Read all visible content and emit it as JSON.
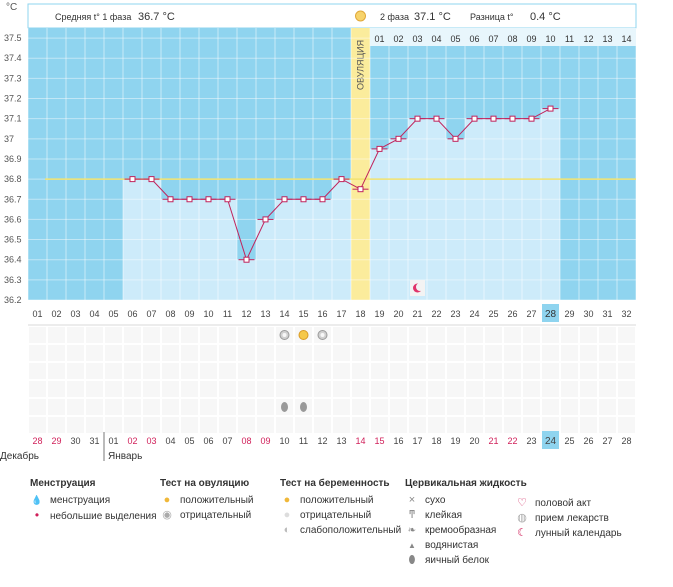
{
  "chart_data": {
    "type": "line",
    "ylabel": "°C",
    "y_ticks": [
      "37.5",
      "37.4",
      "37.3",
      "37.2",
      "37.1",
      "37",
      "36.9",
      "36.8",
      "36.7",
      "36.6",
      "36.5",
      "36.4",
      "36.3",
      "36.2"
    ],
    "ylim": [
      36.2,
      37.5
    ],
    "cycle_days": [
      "01",
      "02",
      "03",
      "04",
      "05",
      "06",
      "07",
      "08",
      "09",
      "10",
      "11",
      "12",
      "13",
      "14",
      "15",
      "16",
      "17",
      "18",
      "19",
      "20",
      "21",
      "22",
      "23",
      "24",
      "25",
      "26",
      "27",
      "28",
      "29",
      "30",
      "31",
      "32"
    ],
    "temperatures": [
      null,
      null,
      null,
      null,
      null,
      36.8,
      36.8,
      36.7,
      36.7,
      36.7,
      36.7,
      36.4,
      36.6,
      36.7,
      36.7,
      36.7,
      36.8,
      36.75,
      36.95,
      37.0,
      37.1,
      37.1,
      37.0,
      37.1,
      37.1,
      37.1,
      37.1,
      37.15,
      null,
      null,
      null,
      null
    ],
    "coverline": 36.8,
    "ovulation_day": 18,
    "current_day": 28,
    "phase1": {
      "label": "Средняя t° 1 фаза",
      "value": "36.7 °C"
    },
    "phase2": {
      "label": "2 фаза",
      "value": "37.1 °C"
    },
    "difference": {
      "label": "Разница t°",
      "value": "0.4 °C"
    },
    "ovulation_label": "ОВУЛЯЦИЯ",
    "phase2_days": [
      "01",
      "02",
      "03",
      "04",
      "05",
      "06",
      "07",
      "08",
      "09",
      "10",
      "11",
      "12",
      "13",
      "14"
    ],
    "calendar_dates": [
      "28",
      "29",
      "30",
      "31",
      "01",
      "02",
      "03",
      "04",
      "05",
      "06",
      "07",
      "08",
      "09",
      "10",
      "11",
      "12",
      "13",
      "14",
      "15",
      "16",
      "17",
      "18",
      "19",
      "20",
      "21",
      "22",
      "23",
      "24",
      "25",
      "26",
      "27",
      "28"
    ],
    "weekend_indices": [
      0,
      1,
      5,
      6,
      11,
      12,
      17,
      18,
      24,
      25
    ],
    "months": [
      "Декабрь",
      "Январь"
    ],
    "markers": {
      "ovulation_positive_day": 15,
      "ovulation_negative_days": [
        14,
        16
      ],
      "fluid_egg_white_days": [
        14,
        15
      ],
      "lunar_day": 21
    },
    "colors": {
      "blue": "#8fd4ef",
      "light_blue": "#cdebfa",
      "line": "#c0235c",
      "coverline": "#f3e36f",
      "ovulation": "#fbec9c",
      "today": "#8fd4ef"
    }
  },
  "legend": [
    {
      "title": "Менструация",
      "items": [
        {
          "icon": "menstruation-icon",
          "label": "менструация"
        },
        {
          "icon": "spotting-icon",
          "label": "небольшие выделения"
        }
      ]
    },
    {
      "title": "Тест на овуляцию",
      "items": [
        {
          "icon": "ovulation-test-positive-icon",
          "label": "положительный"
        },
        {
          "icon": "ovulation-test-negative-icon",
          "label": "отрицательный"
        }
      ]
    },
    {
      "title": "Тест на беременность",
      "items": [
        {
          "icon": "pregnancy-test-positive-icon",
          "label": "положительный"
        },
        {
          "icon": "pregnancy-test-negative-icon",
          "label": "отрицательный"
        },
        {
          "icon": "pregnancy-test-weak-icon",
          "label": "слабоположительный"
        }
      ]
    },
    {
      "title": "Цервикальная жидкость",
      "items": [
        {
          "icon": "dry-icon",
          "label": "сухо"
        },
        {
          "icon": "sticky-icon",
          "label": "клейкая"
        },
        {
          "icon": "creamy-icon",
          "label": "кремообразная"
        },
        {
          "icon": "watery-icon",
          "label": "водянистая"
        },
        {
          "icon": "egg-white-icon",
          "label": "яичный белок"
        }
      ]
    },
    {
      "title": "",
      "items": [
        {
          "icon": "intercourse-icon",
          "label": "половой акт"
        },
        {
          "icon": "medication-icon",
          "label": "прием лекарств"
        },
        {
          "icon": "lunar-calendar-icon",
          "label": "лунный календарь"
        }
      ]
    }
  ]
}
